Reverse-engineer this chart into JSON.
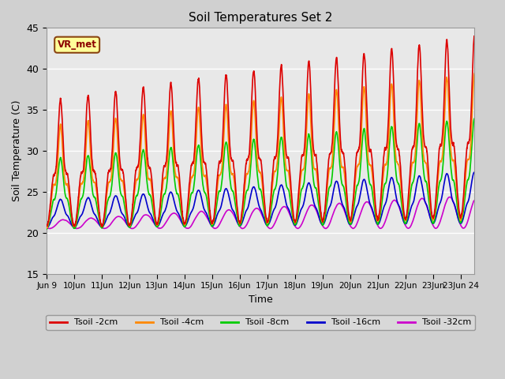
{
  "title": "Soil Temperatures Set 2",
  "xlabel": "Time",
  "ylabel": "Soil Temperature (C)",
  "ylim": [
    15,
    45
  ],
  "yticks": [
    15,
    20,
    25,
    30,
    35,
    40,
    45
  ],
  "annotation": "VR_met",
  "series_colors": [
    "#dd0000",
    "#ff8800",
    "#00cc00",
    "#0000cc",
    "#cc00cc"
  ],
  "series_labels": [
    "Tsoil -2cm",
    "Tsoil -4cm",
    "Tsoil -8cm",
    "Tsoil -16cm",
    "Tsoil -32cm"
  ],
  "days": 15.5,
  "points_per_day": 288
}
